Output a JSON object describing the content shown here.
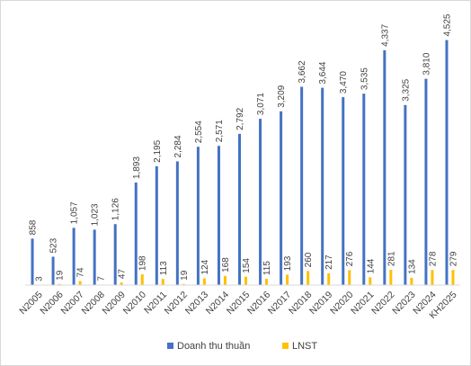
{
  "chart_data": {
    "type": "bar",
    "categories": [
      "N2005",
      "N2006",
      "N2007",
      "N2008",
      "N2009",
      "N2010",
      "N2011",
      "N2012",
      "N2013",
      "N2014",
      "N2015",
      "N2016",
      "N2017",
      "N2018",
      "N2019",
      "N2020",
      "N2021",
      "N2022",
      "N2023",
      "N2024",
      "KH2025"
    ],
    "series": [
      {
        "name": "Doanh thu thuần",
        "color": "#4472c4",
        "values": [
          858,
          523,
          1057,
          1023,
          1126,
          1893,
          2195,
          2284,
          2554,
          2571,
          2792,
          3071,
          3209,
          3662,
          3644,
          3470,
          3535,
          4337,
          3325,
          3810,
          4525
        ],
        "labels": [
          "858",
          "523",
          "1,057",
          "1,023",
          "1,126",
          "1,893",
          "2,195",
          "2,284",
          "2,554",
          "2,571",
          "2,792",
          "3,071",
          "3,209",
          "3,662",
          "3,644",
          "3,470",
          "3,535",
          "4,337",
          "3,325",
          "3,810",
          "4,525"
        ]
      },
      {
        "name": "LNST",
        "color": "#ffc000",
        "values": [
          3,
          19,
          74,
          7,
          47,
          198,
          113,
          19,
          124,
          168,
          154,
          115,
          193,
          260,
          217,
          276,
          144,
          281,
          134,
          278,
          279
        ],
        "labels": [
          "3",
          "19",
          "74",
          "7",
          "47",
          "198",
          "113",
          "19",
          "124",
          "168",
          "154",
          "115",
          "193",
          "260",
          "217",
          "276",
          "144",
          "281",
          "134",
          "278",
          "279"
        ]
      }
    ],
    "ylim": [
      0,
      4700
    ],
    "grid": false,
    "legend_position": "bottom"
  }
}
